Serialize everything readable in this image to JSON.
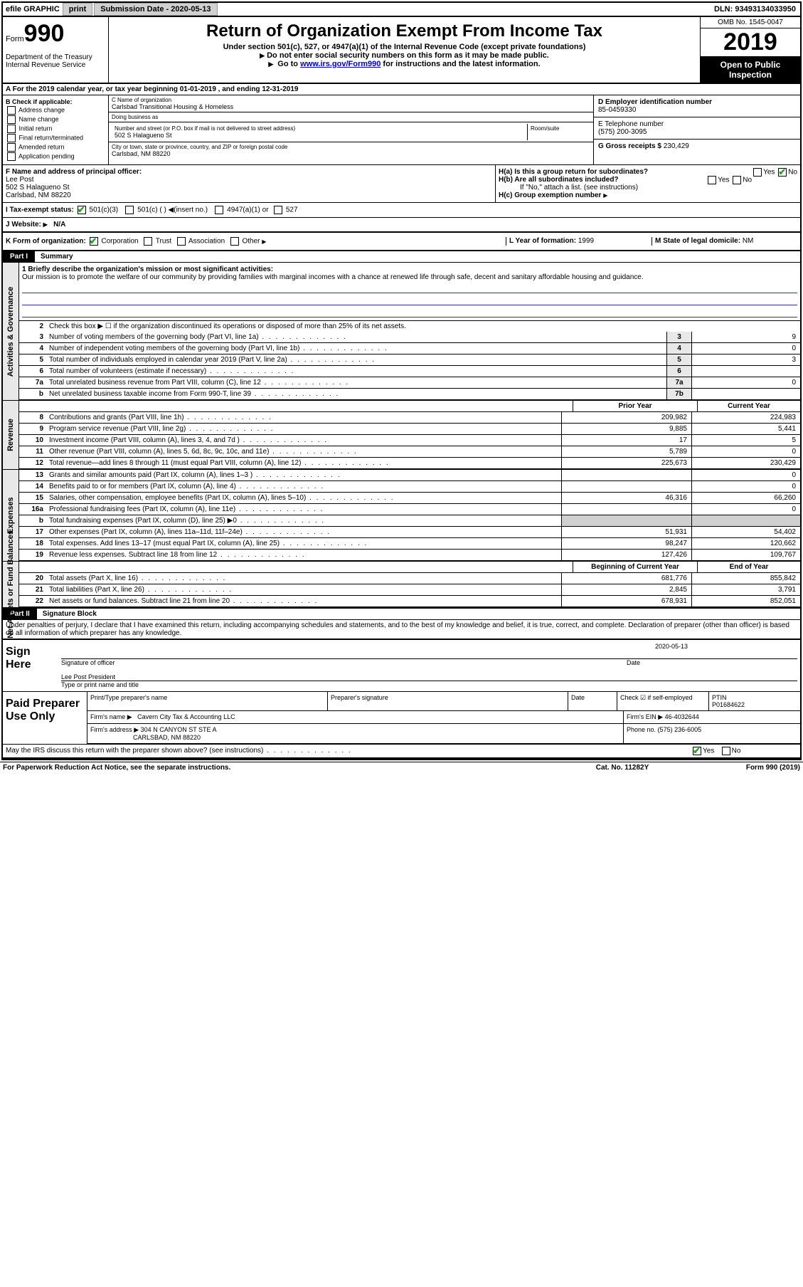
{
  "topbar": {
    "efile_label": "efile GRAPHIC",
    "print_btn": "print",
    "submission_label": "Submission Date - 2020-05-13",
    "dln": "DLN: 93493134033950"
  },
  "header": {
    "form_label": "Form",
    "form_number": "990",
    "dept": "Department of the Treasury\nInternal Revenue Service",
    "title": "Return of Organization Exempt From Income Tax",
    "subtitle": "Under section 501(c), 527, or 4947(a)(1) of the Internal Revenue Code (except private foundations)",
    "note1": "Do not enter social security numbers on this form as it may be made public.",
    "note2_pre": "Go to ",
    "note2_link": "www.irs.gov/Form990",
    "note2_post": " for instructions and the latest information.",
    "omb": "OMB No. 1545-0047",
    "year": "2019",
    "open_public": "Open to Public Inspection"
  },
  "line_a": "A For the 2019 calendar year, or tax year beginning 01-01-2019   , and ending 12-31-2019",
  "box_b": {
    "label": "B Check if applicable:",
    "items": [
      "Address change",
      "Name change",
      "Initial return",
      "Final return/terminated",
      "Amended return",
      "Application pending"
    ]
  },
  "box_c": {
    "name_label": "C Name of organization",
    "name": "Carlsbad Transitional Housing & Homeless",
    "dba_label": "Doing business as",
    "street_label": "Number and street (or P.O. box if mail is not delivered to street address)",
    "room_label": "Room/suite",
    "street": "502 S Halagueno St",
    "city_label": "City or town, state or province, country, and ZIP or foreign postal code",
    "city": "Carlsbad, NM  88220"
  },
  "box_d": {
    "label": "D Employer identification number",
    "value": "85-0459330"
  },
  "box_e": {
    "label": "E Telephone number",
    "value": "(575) 200-3095"
  },
  "box_g": {
    "label": "G Gross receipts $",
    "value": "230,429"
  },
  "box_f": {
    "label": "F Name and address of principal officer:",
    "name": "Lee Post",
    "street": "502 S Halagueno St",
    "city": "Carlsbad, NM  88220"
  },
  "box_h": {
    "a": "H(a)  Is this a group return for subordinates?",
    "a_yes": "Yes",
    "a_no": "No",
    "b": "H(b)  Are all subordinates included?",
    "b_note": "If \"No,\" attach a list. (see instructions)",
    "c": "H(c)  Group exemption number"
  },
  "box_i": {
    "label": "I   Tax-exempt status:",
    "opts": [
      "501(c)(3)",
      "501(c) (  )",
      "(insert no.)",
      "4947(a)(1) or",
      "527"
    ]
  },
  "box_j": {
    "label": "J   Website:",
    "value": "N/A"
  },
  "box_k": {
    "label": "K Form of organization:",
    "opts": [
      "Corporation",
      "Trust",
      "Association",
      "Other"
    ]
  },
  "box_l": {
    "label": "L Year of formation:",
    "value": "1999"
  },
  "box_m": {
    "label": "M State of legal domicile:",
    "value": "NM"
  },
  "part1": {
    "tab": "Part I",
    "title": "Summary",
    "mission_label": "1  Briefly describe the organization's mission or most significant activities:",
    "mission": "Our mission is to promote the welfare of our community by providing families with marginal incomes with a chance at renewed life through safe, decent and sanitary affordable housing and guidance.",
    "line2": "Check this box ▶ ☐ if the organization discontinued its operations or disposed of more than 25% of its net assets.",
    "rows_gov": [
      {
        "n": "3",
        "d": "Number of voting members of the governing body (Part VI, line 1a)",
        "b": "3",
        "v": "9"
      },
      {
        "n": "4",
        "d": "Number of independent voting members of the governing body (Part VI, line 1b)",
        "b": "4",
        "v": "0"
      },
      {
        "n": "5",
        "d": "Total number of individuals employed in calendar year 2019 (Part V, line 2a)",
        "b": "5",
        "v": "3"
      },
      {
        "n": "6",
        "d": "Total number of volunteers (estimate if necessary)",
        "b": "6",
        "v": ""
      },
      {
        "n": "7a",
        "d": "Total unrelated business revenue from Part VIII, column (C), line 12",
        "b": "7a",
        "v": "0"
      },
      {
        "n": "b",
        "d": "Net unrelated business taxable income from Form 990-T, line 39",
        "b": "7b",
        "v": ""
      }
    ],
    "col_hdr_prior": "Prior Year",
    "col_hdr_current": "Current Year",
    "rows_rev": [
      {
        "n": "8",
        "d": "Contributions and grants (Part VIII, line 1h)",
        "p": "209,982",
        "c": "224,983"
      },
      {
        "n": "9",
        "d": "Program service revenue (Part VIII, line 2g)",
        "p": "9,885",
        "c": "5,441"
      },
      {
        "n": "10",
        "d": "Investment income (Part VIII, column (A), lines 3, 4, and 7d )",
        "p": "17",
        "c": "5"
      },
      {
        "n": "11",
        "d": "Other revenue (Part VIII, column (A), lines 5, 6d, 8c, 9c, 10c, and 11e)",
        "p": "5,789",
        "c": "0"
      },
      {
        "n": "12",
        "d": "Total revenue—add lines 8 through 11 (must equal Part VIII, column (A), line 12)",
        "p": "225,673",
        "c": "230,429"
      }
    ],
    "rows_exp": [
      {
        "n": "13",
        "d": "Grants and similar amounts paid (Part IX, column (A), lines 1–3 )",
        "p": "",
        "c": "0"
      },
      {
        "n": "14",
        "d": "Benefits paid to or for members (Part IX, column (A), line 4)",
        "p": "",
        "c": "0"
      },
      {
        "n": "15",
        "d": "Salaries, other compensation, employee benefits (Part IX, column (A), lines 5–10)",
        "p": "46,316",
        "c": "66,260"
      },
      {
        "n": "16a",
        "d": "Professional fundraising fees (Part IX, column (A), line 11e)",
        "p": "",
        "c": "0"
      },
      {
        "n": "b",
        "d": "Total fundraising expenses (Part IX, column (D), line 25) ▶0",
        "p": "shade",
        "c": "shade"
      },
      {
        "n": "17",
        "d": "Other expenses (Part IX, column (A), lines 11a–11d, 11f–24e)",
        "p": "51,931",
        "c": "54,402"
      },
      {
        "n": "18",
        "d": "Total expenses. Add lines 13–17 (must equal Part IX, column (A), line 25)",
        "p": "98,247",
        "c": "120,662"
      },
      {
        "n": "19",
        "d": "Revenue less expenses. Subtract line 18 from line 12",
        "p": "127,426",
        "c": "109,767"
      }
    ],
    "col_hdr_boy": "Beginning of Current Year",
    "col_hdr_eoy": "End of Year",
    "rows_net": [
      {
        "n": "20",
        "d": "Total assets (Part X, line 16)",
        "p": "681,776",
        "c": "855,842"
      },
      {
        "n": "21",
        "d": "Total liabilities (Part X, line 26)",
        "p": "2,845",
        "c": "3,791"
      },
      {
        "n": "22",
        "d": "Net assets or fund balances. Subtract line 21 from line 20",
        "p": "678,931",
        "c": "852,051"
      }
    ],
    "sides": {
      "gov": "Activities & Governance",
      "rev": "Revenue",
      "exp": "Expenses",
      "net": "Net Assets or Fund Balances"
    }
  },
  "part2": {
    "tab": "Part II",
    "title": "Signature Block",
    "decl": "Under penalties of perjury, I declare that I have examined this return, including accompanying schedules and statements, and to the best of my knowledge and belief, it is true, correct, and complete. Declaration of preparer (other than officer) is based on all information of which preparer has any knowledge.",
    "sign_here": "Sign Here",
    "sig_officer": "Signature of officer",
    "sig_date": "2020-05-13",
    "date_label": "Date",
    "officer_name": "Lee Post  President",
    "type_label": "Type or print name and title",
    "paid": "Paid Preparer Use Only",
    "prep_name_label": "Print/Type preparer's name",
    "prep_sig_label": "Preparer's signature",
    "prep_date_label": "Date",
    "check_self": "Check ☑ if self-employed",
    "ptin_label": "PTIN",
    "ptin": "P01684622",
    "firm_name_label": "Firm's name   ▶",
    "firm_name": "Cavern City Tax & Accounting LLC",
    "firm_ein_label": "Firm's EIN ▶",
    "firm_ein": "46-4032644",
    "firm_addr_label": "Firm's address ▶",
    "firm_addr1": "304 N CANYON ST STE A",
    "firm_addr2": "CARLSBAD, NM  88220",
    "phone_label": "Phone no.",
    "phone": "(575) 236-6005",
    "discuss": "May the IRS discuss this return with the preparer shown above? (see instructions)",
    "yes": "Yes",
    "no": "No"
  },
  "footer": {
    "pra": "For Paperwork Reduction Act Notice, see the separate instructions.",
    "cat": "Cat. No. 11282Y",
    "form": "Form 990 (2019)"
  }
}
